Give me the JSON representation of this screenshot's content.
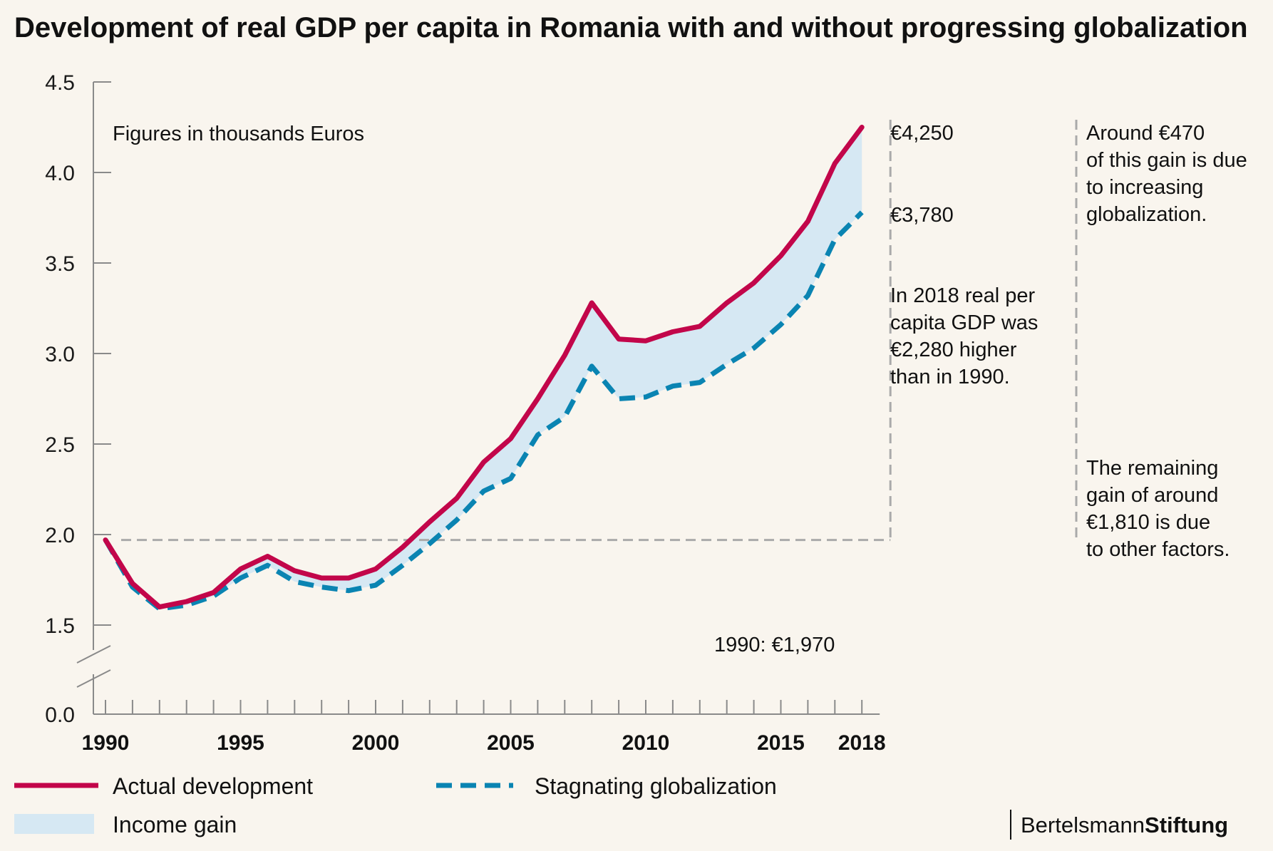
{
  "title": "Development of real GDP per capita in Romania with and without progressing globalization",
  "note": "Figures in thousands Euros",
  "annotations": {
    "end_actual": "€4,250",
    "end_stagnating": "€3,780",
    "gain_text": [
      "In 2018 real per",
      "capita GDP was",
      "€2,280 higher",
      "than in 1990."
    ],
    "globalization_share": [
      "Around €470",
      "of this gain is due",
      "to increasing",
      "globalization."
    ],
    "other_share": [
      "The remaining",
      "gain of around",
      "€1,810 is due",
      "to other factors."
    ],
    "baseline": "1990: €1,970"
  },
  "legend": {
    "actual": "Actual development",
    "stagnating": "Stagnating globalization",
    "gain": "Income gain"
  },
  "brand": {
    "regular": "Bertelsmann",
    "bold": "Stiftung"
  },
  "colors": {
    "actual": "#c2064a",
    "stagnating": "#0a84b2",
    "gain_fill": "#d6e8f3",
    "guide": "#aaaaaa",
    "axis": "#8a8a8a",
    "background": "#f9f5ee"
  },
  "chart_data": {
    "type": "line",
    "title": "Development of real GDP per capita in Romania with and without progressing globalization",
    "xlabel": "",
    "ylabel": "",
    "x": [
      1990,
      1991,
      1992,
      1993,
      1994,
      1995,
      1996,
      1997,
      1998,
      1999,
      2000,
      2001,
      2002,
      2003,
      2004,
      2005,
      2006,
      2007,
      2008,
      2009,
      2010,
      2011,
      2012,
      2013,
      2014,
      2015,
      2016,
      2017,
      2018
    ],
    "x_tick_labels": [
      "1990",
      "1995",
      "2000",
      "2005",
      "2010",
      "2015",
      "2018"
    ],
    "y_tick_labels": [
      "0.0",
      "1.5",
      "2.0",
      "2.5",
      "3.0",
      "3.5",
      "4.0",
      "4.5"
    ],
    "ylim": [
      1.5,
      4.5
    ],
    "y_axis_break": true,
    "series": [
      {
        "name": "Actual development",
        "style": "solid",
        "values": [
          1.97,
          1.73,
          1.6,
          1.63,
          1.68,
          1.81,
          1.88,
          1.8,
          1.76,
          1.76,
          1.81,
          1.93,
          2.07,
          2.2,
          2.4,
          2.53,
          2.75,
          2.99,
          3.28,
          3.08,
          3.07,
          3.12,
          3.15,
          3.28,
          3.39,
          3.54,
          3.73,
          4.05,
          4.25
        ]
      },
      {
        "name": "Stagnating globalization",
        "style": "dashed",
        "values": [
          1.97,
          1.71,
          1.59,
          1.61,
          1.66,
          1.76,
          1.83,
          1.74,
          1.71,
          1.69,
          1.72,
          1.83,
          1.95,
          2.08,
          2.24,
          2.31,
          2.55,
          2.65,
          2.93,
          2.75,
          2.76,
          2.82,
          2.84,
          2.94,
          3.03,
          3.16,
          3.32,
          3.63,
          3.78
        ]
      }
    ],
    "baseline_value": 1.97,
    "shaded_area": "Income gain",
    "grid": false,
    "legend_position": "bottom"
  }
}
